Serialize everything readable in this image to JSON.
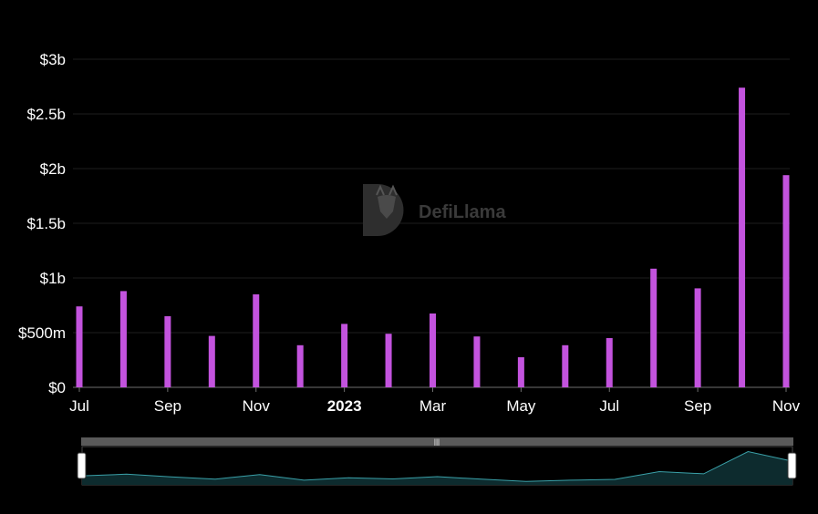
{
  "watermark": {
    "text": "DefiLlama",
    "logo": "defillama-logo"
  },
  "chart_data": {
    "type": "bar",
    "x": [
      "2022-07",
      "2022-08",
      "2022-09",
      "2022-10",
      "2022-11",
      "2022-12",
      "2023-01",
      "2023-02",
      "2023-03",
      "2023-04",
      "2023-05",
      "2023-06",
      "2023-07",
      "2023-08",
      "2023-09",
      "2023-10",
      "2023-11"
    ],
    "values": [
      740000000,
      880000000,
      650000000,
      470000000,
      850000000,
      385000000,
      580000000,
      490000000,
      675000000,
      465000000,
      275000000,
      385000000,
      450000000,
      1085000000,
      905000000,
      2740000000,
      1940000000
    ],
    "x_tick_labels": [
      {
        "x": "2022-07",
        "label": "Jul",
        "bold": false
      },
      {
        "x": "2022-09",
        "label": "Sep",
        "bold": false
      },
      {
        "x": "2022-11",
        "label": "Nov",
        "bold": false
      },
      {
        "x": "2023-01",
        "label": "2023",
        "bold": true
      },
      {
        "x": "2023-03",
        "label": "Mar",
        "bold": false
      },
      {
        "x": "2023-05",
        "label": "May",
        "bold": false
      },
      {
        "x": "2023-07",
        "label": "Jul",
        "bold": false
      },
      {
        "x": "2023-09",
        "label": "Sep",
        "bold": false
      },
      {
        "x": "2023-11",
        "label": "Nov",
        "bold": false
      }
    ],
    "y_ticks": [
      {
        "value": 0,
        "label": "$0"
      },
      {
        "value": 500000000,
        "label": "$500m"
      },
      {
        "value": 1000000000,
        "label": "$1b"
      },
      {
        "value": 1500000000,
        "label": "$1.5b"
      },
      {
        "value": 2000000000,
        "label": "$2b"
      },
      {
        "value": 2500000000,
        "label": "$2.5b"
      },
      {
        "value": 3000000000,
        "label": "$3b"
      }
    ],
    "ylim": [
      0,
      3000000000
    ],
    "grid": true,
    "title": "",
    "xlabel": "",
    "ylabel": ""
  },
  "colors": {
    "background": "#000000",
    "bar": "#c353de",
    "grid": "#1e1e1e",
    "tick_text": "#ffffff",
    "slider_track": "#5a5a5a",
    "slider_line": "#3aa0a8",
    "slider_fill": "#0d2b2e",
    "watermark": "#3a3a3a"
  },
  "range_slider": {
    "handle_glyph": "|||",
    "range": "full"
  }
}
